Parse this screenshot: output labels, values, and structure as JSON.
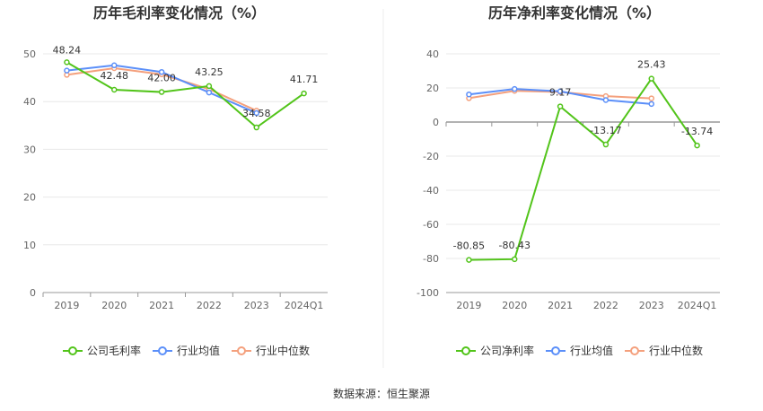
{
  "chart_data": [
    {
      "type": "line",
      "title": "历年毛利率变化情况（%）",
      "categories": [
        "2019",
        "2020",
        "2021",
        "2022",
        "2023",
        "2024Q1"
      ],
      "ylim": [
        0,
        50
      ],
      "yticks": [
        0,
        10,
        20,
        30,
        40,
        50
      ],
      "grid": true,
      "legend_position": "bottom",
      "series": [
        {
          "name": "公司毛利率",
          "color": "#52c41a",
          "values": [
            48.24,
            42.48,
            42.0,
            43.25,
            34.58,
            41.71
          ],
          "labels": [
            "48.24",
            "42.48",
            "42.00",
            "43.25",
            "34.58",
            "41.71"
          ]
        },
        {
          "name": "行业均值",
          "color": "#5b8ff9",
          "values": [
            46.5,
            47.6,
            46.2,
            41.9,
            37.6,
            null
          ]
        },
        {
          "name": "行业中位数",
          "color": "#f4a07d",
          "values": [
            45.6,
            47.0,
            45.7,
            42.6,
            38.1,
            null
          ]
        }
      ]
    },
    {
      "type": "line",
      "title": "历年净利率变化情况（%）",
      "categories": [
        "2019",
        "2020",
        "2021",
        "2022",
        "2023",
        "2024Q1"
      ],
      "ylim": [
        -100,
        40
      ],
      "yticks": [
        -100,
        -80,
        -60,
        -40,
        -20,
        0,
        20,
        40
      ],
      "grid": true,
      "legend_position": "bottom",
      "series": [
        {
          "name": "公司净利率",
          "color": "#52c41a",
          "values": [
            -80.85,
            -80.43,
            9.17,
            -13.17,
            25.43,
            -13.74
          ],
          "labels": [
            "-80.85",
            "-80.43",
            "9.17",
            "-13.17",
            "25.43",
            "-13.74"
          ]
        },
        {
          "name": "行业均值",
          "color": "#5b8ff9",
          "values": [
            16.2,
            19.4,
            18.0,
            12.9,
            10.6,
            null
          ]
        },
        {
          "name": "行业中位数",
          "color": "#f4a07d",
          "values": [
            14.0,
            18.3,
            17.6,
            15.2,
            13.9,
            null
          ]
        }
      ]
    }
  ],
  "source": "数据来源：恒生聚源"
}
